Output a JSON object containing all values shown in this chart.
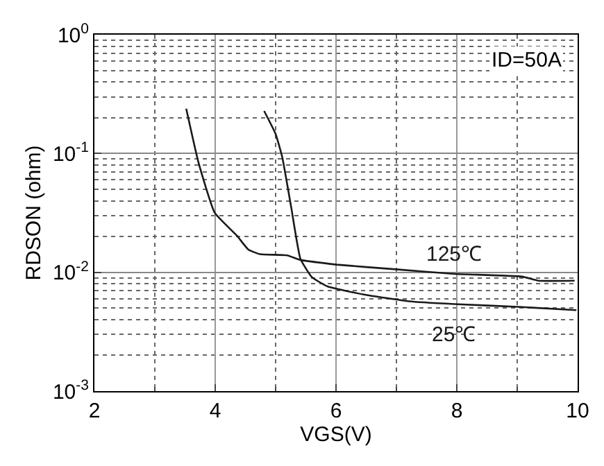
{
  "chart_data": {
    "type": "line",
    "xlabel": "VGS(V)",
    "ylabel": "RDSON (ohm)",
    "log": "y",
    "grid": true,
    "legend": false,
    "marker": "none",
    "line_style": "solid",
    "xlim": [
      2,
      10
    ],
    "xticks": [
      2,
      4,
      6,
      8,
      10
    ],
    "ylim": [
      0.001,
      1
    ],
    "yticks": [
      {
        "value": 0.001,
        "label": "10$^{-3}$"
      },
      {
        "value": 0.01,
        "label": "10$^{-2}$"
      },
      {
        "value": 0.1,
        "label": "10$^{-1}$"
      },
      {
        "value": 1,
        "label": "10$^{0}$"
      }
    ],
    "series": [
      {
        "name": "125℃",
        "color": "#1a1a1a",
        "x": [
          3.52,
          3.72,
          3.99,
          4.36,
          4.55,
          4.74,
          5.19,
          5.41,
          6.01,
          6.99,
          7.96,
          9.08,
          9.35,
          9.95
        ],
        "values": [
          0.238,
          0.085,
          0.0318,
          0.0203,
          0.0155,
          0.0142,
          0.0139,
          0.0127,
          0.0116,
          0.0106,
          0.0097,
          0.0092,
          0.0085,
          0.0085
        ]
      },
      {
        "name": "25℃",
        "color": "#1a1a1a",
        "x": [
          4.81,
          5.0,
          5.11,
          5.26,
          5.41,
          5.6,
          5.86,
          6.46,
          7.21,
          7.96,
          9.08,
          9.98
        ],
        "values": [
          0.228,
          0.146,
          0.093,
          0.0348,
          0.013,
          0.0091,
          0.0076,
          0.0065,
          0.0057,
          0.0054,
          0.0051,
          0.0048
        ]
      }
    ],
    "annotations": [
      "ID=50A"
    ]
  }
}
